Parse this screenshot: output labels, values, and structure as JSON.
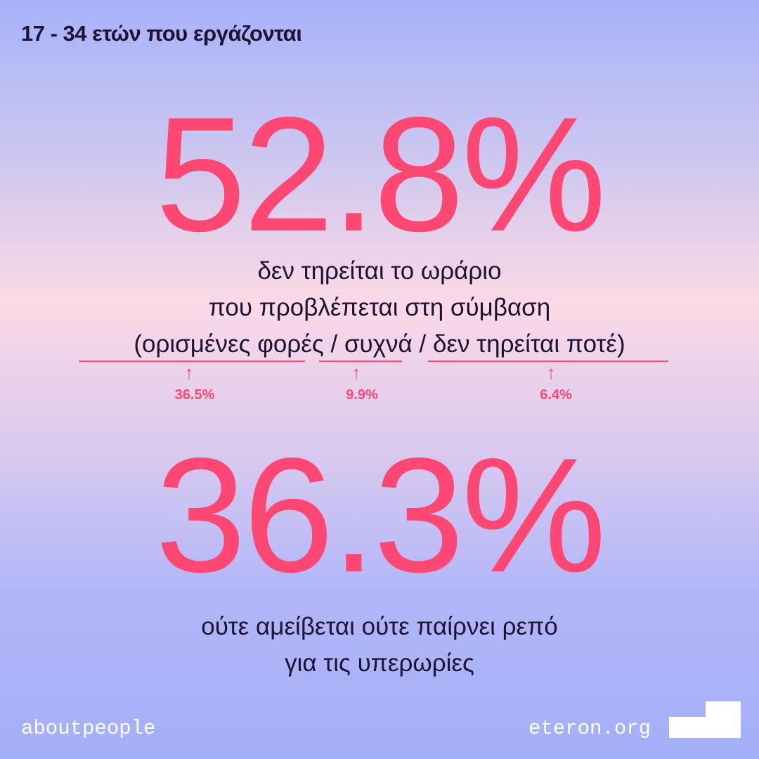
{
  "header": {
    "title": "17 - 34 ετών που εργάζονται"
  },
  "stat1": {
    "value": "52.8%",
    "line1": "δεν τηρείται το ωράριο",
    "line2": "που προβλέπεται στη σύμβαση",
    "line3": "(ορισμένες φορές / συχνά / δεν τηρείται ποτέ)",
    "breakdown": [
      {
        "label": "ορισμένες φορές",
        "value": "36.5%"
      },
      {
        "label": "συχνά",
        "value": "9.9%"
      },
      {
        "label": "δεν τηρείται ποτέ",
        "value": "6.4%"
      }
    ]
  },
  "stat2": {
    "value": "36.3%",
    "line1": "ούτε αμείβεται ούτε παίρνει ρεπό",
    "line2": "για τις υπερωρίες"
  },
  "footer": {
    "left": "aboutpeople",
    "right": "eteron.org"
  },
  "colors": {
    "accent": "#ff4773",
    "text": "#1b1433",
    "footer": "#ffffff"
  },
  "icons": {
    "logo": "eteron-logo-icon",
    "arrow": "up-arrow-icon"
  }
}
